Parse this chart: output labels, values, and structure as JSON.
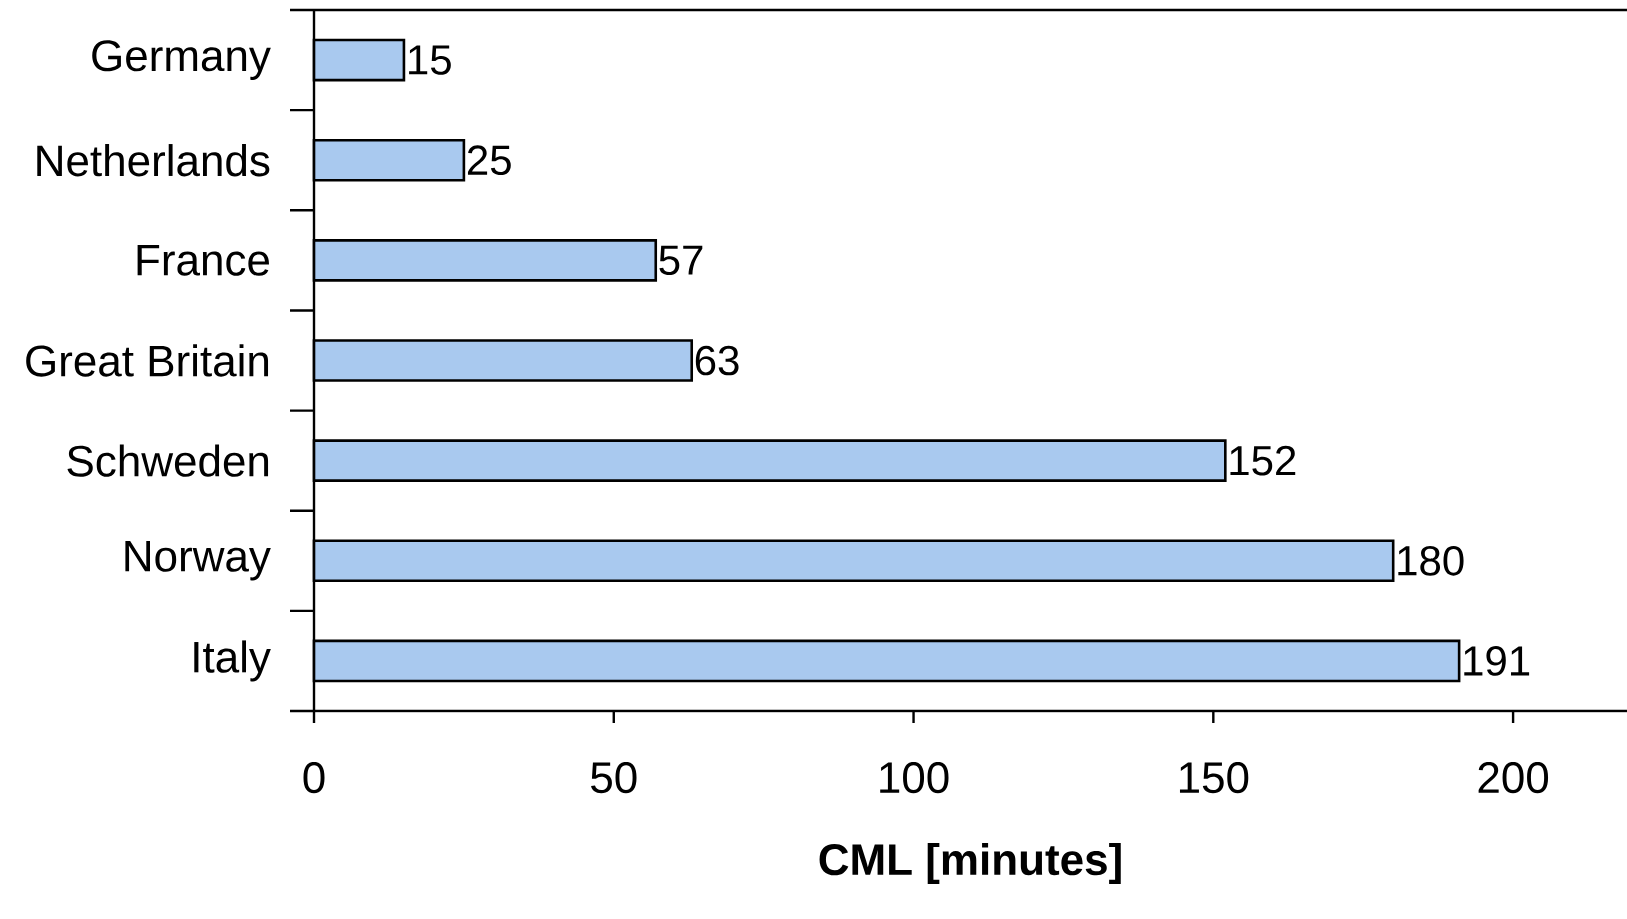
{
  "chart_data": {
    "type": "bar",
    "orientation": "horizontal",
    "xlabel": "CML [minutes]",
    "categories": [
      "Germany",
      "Netherlands",
      "France",
      "Great Britain",
      "Schweden",
      "Norway",
      "Italy"
    ],
    "values": [
      15,
      25,
      57,
      63,
      152,
      180,
      191
    ],
    "color": "#a9c9ef",
    "xlim": [
      0,
      219
    ],
    "xticks": [
      0,
      50,
      100,
      150,
      200
    ],
    "data_labels": true,
    "grid": false
  }
}
